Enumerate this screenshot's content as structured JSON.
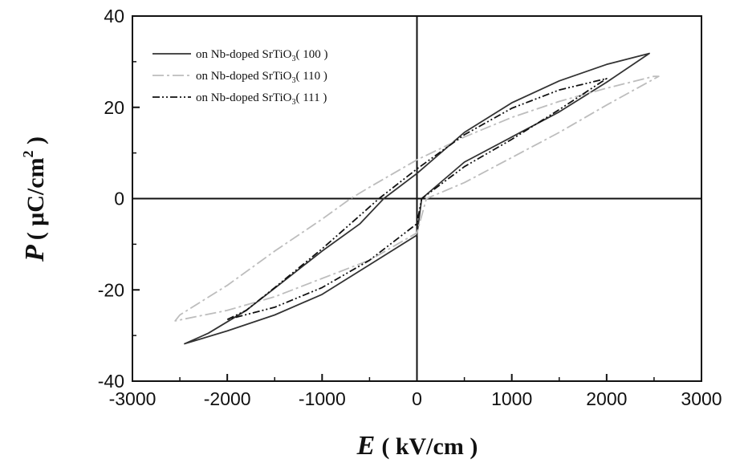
{
  "chart_data": {
    "type": "line",
    "title": "",
    "xlabel": {
      "symbol": "E",
      "unit": "( kV/cm )"
    },
    "ylabel": {
      "symbol": "P",
      "unit_open": "( μC/cm",
      "unit_sup": "2",
      "unit_close": " )"
    },
    "xlim": [
      -3000,
      3000
    ],
    "ylim": [
      -40,
      40
    ],
    "xticks": [
      -3000,
      -2000,
      -1000,
      0,
      1000,
      2000,
      3000
    ],
    "yticks": [
      -40,
      -20,
      0,
      20,
      40
    ],
    "xtick_labels": [
      "-3000",
      "-2000",
      "-1000",
      "0",
      "1000",
      "2000",
      "3000"
    ],
    "ytick_labels": [
      "-40",
      "-20",
      "0",
      "20",
      "40"
    ],
    "legend_position": "top-left",
    "series": [
      {
        "legend_prefix": "on Nb-doped SrTiO",
        "legend_sub": "3",
        "legend_suffix": "( 100 )",
        "color": "#333333",
        "dash": "",
        "upper": [
          [
            -2450,
            -31.8
          ],
          [
            -2200,
            -29.5
          ],
          [
            -1800,
            -24.5
          ],
          [
            -1400,
            -18
          ],
          [
            -1000,
            -11.5
          ],
          [
            -600,
            -5.5
          ],
          [
            -350,
            0
          ],
          [
            0,
            5.5
          ],
          [
            500,
            14.5
          ],
          [
            1000,
            21
          ],
          [
            1500,
            25.8
          ],
          [
            2000,
            29.4
          ],
          [
            2450,
            31.8
          ]
        ],
        "lower": [
          [
            -2450,
            -31.8
          ],
          [
            -2000,
            -29
          ],
          [
            -1500,
            -25.5
          ],
          [
            -1000,
            -21
          ],
          [
            -500,
            -14.5
          ],
          [
            0,
            -8
          ],
          [
            50,
            0
          ],
          [
            500,
            8
          ],
          [
            1000,
            13.5
          ],
          [
            1500,
            19
          ],
          [
            2000,
            25.5
          ],
          [
            2450,
            31.8
          ]
        ]
      },
      {
        "legend_prefix": "on Nb-doped SrTiO",
        "legend_sub": "3",
        "legend_suffix": "( 110 )",
        "color": "#bdbdbd",
        "dash": "14 4 3 4",
        "upper": [
          [
            -2550,
            -26.8
          ],
          [
            -2500,
            -25.5
          ],
          [
            -2000,
            -19
          ],
          [
            -1500,
            -11.5
          ],
          [
            -1000,
            -4.5
          ],
          [
            -700,
            0
          ],
          [
            -500,
            2.5
          ],
          [
            0,
            8.5
          ],
          [
            500,
            13.5
          ],
          [
            1000,
            17.8
          ],
          [
            1500,
            21.3
          ],
          [
            2000,
            24.2
          ],
          [
            2500,
            26.8
          ]
        ],
        "lower": [
          [
            -2550,
            -26.8
          ],
          [
            -2000,
            -24.5
          ],
          [
            -1500,
            -21.5
          ],
          [
            -1000,
            -17.5
          ],
          [
            -500,
            -13.5
          ],
          [
            0,
            -7.5
          ],
          [
            100,
            0
          ],
          [
            500,
            3.5
          ],
          [
            1000,
            9
          ],
          [
            1500,
            14.5
          ],
          [
            2000,
            20.5
          ],
          [
            2550,
            26.8
          ]
        ]
      },
      {
        "legend_prefix": "on Nb-doped SrTiO",
        "legend_sub": "3",
        "legend_suffix": "( 111 )",
        "color": "#111111",
        "dash": "9 3 2 3 2 3",
        "upper": [
          [
            -2000,
            -26.5
          ],
          [
            -1800,
            -24.5
          ],
          [
            -1500,
            -19.5
          ],
          [
            -1000,
            -11
          ],
          [
            -700,
            -5.5
          ],
          [
            -400,
            0
          ],
          [
            0,
            6.5
          ],
          [
            500,
            14
          ],
          [
            1000,
            19.8
          ],
          [
            1500,
            23.8
          ],
          [
            2000,
            26.3
          ]
        ],
        "lower": [
          [
            -2000,
            -26.5
          ],
          [
            -1500,
            -23.8
          ],
          [
            -1000,
            -19.5
          ],
          [
            -500,
            -13.5
          ],
          [
            0,
            -5.5
          ],
          [
            50,
            0
          ],
          [
            500,
            7
          ],
          [
            1000,
            13
          ],
          [
            1500,
            19.5
          ],
          [
            2000,
            26.3
          ]
        ]
      }
    ]
  }
}
